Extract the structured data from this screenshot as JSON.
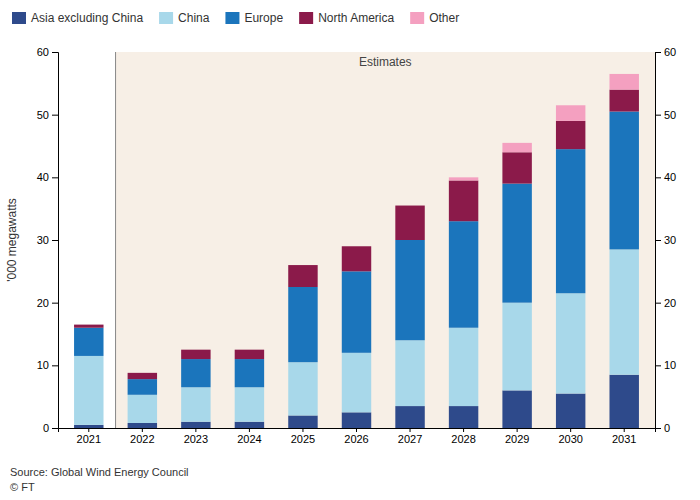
{
  "chart_data": {
    "type": "bar",
    "stacked": true,
    "ylabel": "'000 megawatts",
    "categories": [
      "2021",
      "2022",
      "2023",
      "2024",
      "2025",
      "2026",
      "2027",
      "2028",
      "2029",
      "2030",
      "2031"
    ],
    "series": [
      {
        "name": "Asia excluding China",
        "color": "#2E4A8B",
        "values": [
          0.5,
          0.8,
          1.0,
          1.0,
          2.0,
          2.5,
          3.5,
          3.5,
          6.0,
          5.5,
          8.5
        ]
      },
      {
        "name": "China",
        "color": "#A8D8EA",
        "values": [
          11.0,
          4.5,
          5.5,
          5.5,
          8.5,
          9.5,
          10.5,
          12.5,
          14.0,
          16.0,
          20.0
        ]
      },
      {
        "name": "Europe",
        "color": "#1B75BC",
        "values": [
          4.5,
          2.5,
          4.5,
          4.5,
          12.0,
          13.0,
          16.0,
          17.0,
          19.0,
          23.0,
          22.0
        ]
      },
      {
        "name": "North America",
        "color": "#8B1A4A",
        "values": [
          0.5,
          1.0,
          1.5,
          1.5,
          3.5,
          4.0,
          5.5,
          6.5,
          5.0,
          4.5,
          3.5
        ]
      },
      {
        "name": "Other",
        "color": "#F4A0C0",
        "values": [
          0.0,
          0.0,
          0.0,
          0.0,
          0.0,
          0.0,
          0.0,
          0.5,
          1.5,
          2.5,
          2.5
        ]
      }
    ],
    "ylim": [
      0,
      60
    ],
    "yticks": [
      0,
      10,
      20,
      30,
      40,
      50,
      60
    ],
    "y2lim": [
      0,
      60
    ],
    "y2ticks": [
      0,
      10,
      20,
      30,
      40,
      50,
      60
    ],
    "grid": false,
    "legend": "top",
    "annotations": [
      {
        "text": "Estimates",
        "x": "2022"
      },
      {
        "text": "Source: Global Wind Energy Council"
      },
      {
        "text": "© FT"
      }
    ]
  }
}
